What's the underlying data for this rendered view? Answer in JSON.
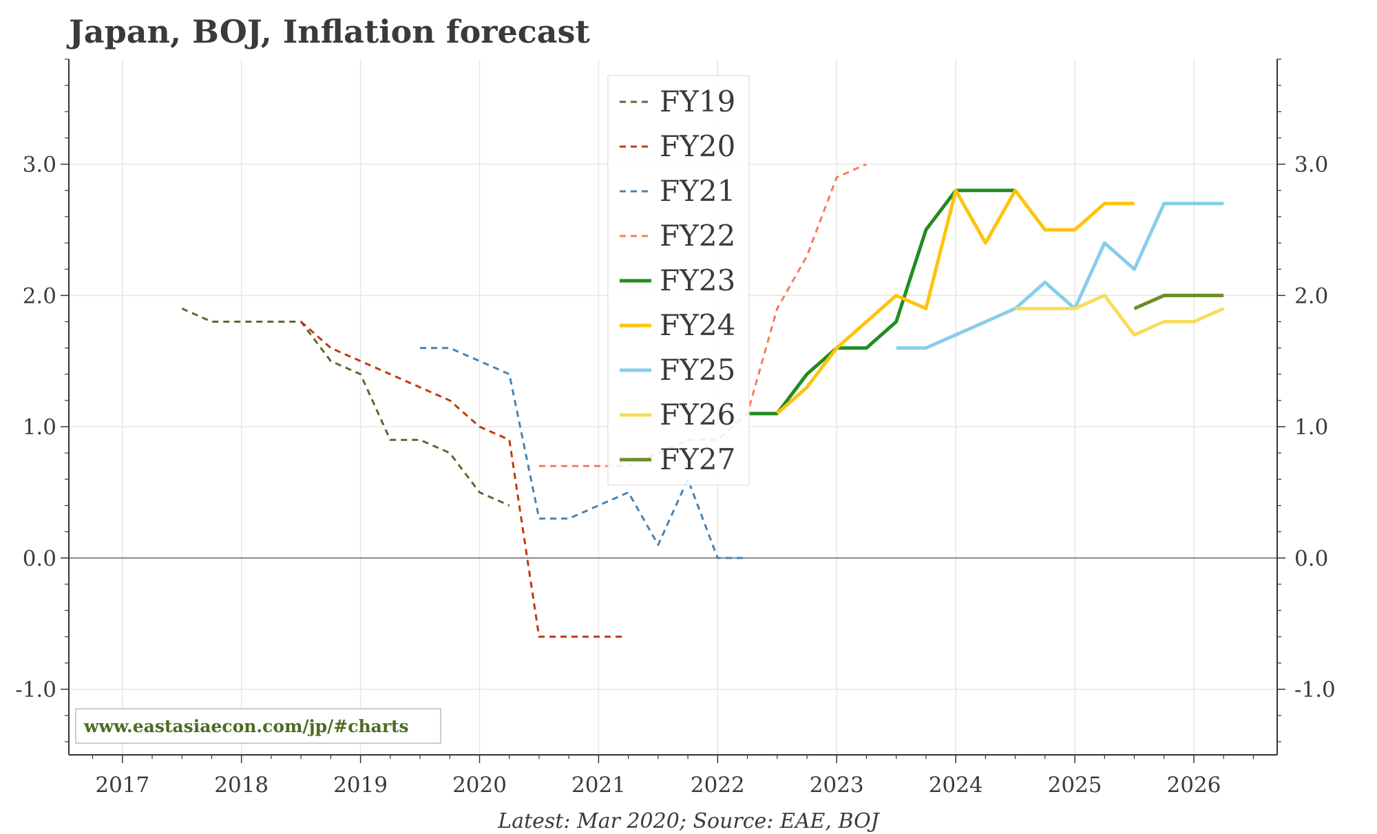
{
  "chart_data": {
    "type": "line",
    "title": "Japan, BOJ, Inflation forecast",
    "source_note": "Latest: Mar 2020; Source: EAE, BOJ",
    "watermark": "www.eastasiaecon.com/jp/#charts",
    "x_tick_labels": [
      "2017",
      "2018",
      "2019",
      "2020",
      "2021",
      "2022",
      "2023",
      "2024",
      "2025",
      "2026"
    ],
    "xlim": [
      2016.55,
      2026.7
    ],
    "ylim": [
      -1.5,
      3.8
    ],
    "y_ticks": [
      -1.0,
      0.0,
      1.0,
      2.0,
      3.0
    ],
    "y_tick_labels": [
      "-1.0",
      "0.0",
      "1.0",
      "2.0",
      "3.0"
    ],
    "zero_line": true,
    "grid": true,
    "legend_position": "top-center",
    "series": [
      {
        "name": "FY19",
        "color": "#556b2f",
        "dashed": true,
        "x": [
          2017.5,
          2017.75,
          2018.0,
          2018.25,
          2018.5,
          2018.75,
          2019.0,
          2019.25,
          2019.5,
          2019.75,
          2020.0,
          2020.25
        ],
        "y": [
          1.9,
          1.8,
          1.8,
          1.8,
          1.8,
          1.5,
          1.4,
          0.9,
          0.9,
          0.8,
          0.5,
          0.4
        ]
      },
      {
        "name": "FY20",
        "color": "#c0390b",
        "dashed": true,
        "x": [
          2018.5,
          2018.75,
          2019.0,
          2019.25,
          2019.5,
          2019.75,
          2020.0,
          2020.25,
          2020.5,
          2020.75,
          2021.0,
          2021.2
        ],
        "y": [
          1.8,
          1.6,
          1.5,
          1.4,
          1.3,
          1.2,
          1.0,
          0.9,
          -0.6,
          -0.6,
          -0.6,
          -0.6
        ]
      },
      {
        "name": "FY21",
        "color": "#4682b4",
        "dashed": true,
        "x": [
          2019.5,
          2019.75,
          2020.0,
          2020.25,
          2020.5,
          2020.75,
          2021.0,
          2021.25,
          2021.5,
          2021.75,
          2022.0,
          2022.25
        ],
        "y": [
          1.6,
          1.6,
          1.5,
          1.4,
          0.3,
          0.3,
          0.4,
          0.5,
          0.1,
          0.6,
          0.0,
          0.0
        ]
      },
      {
        "name": "FY22",
        "color": "#f47c56",
        "dashed": true,
        "x": [
          2020.5,
          2020.75,
          2021.0,
          2021.25,
          2021.5,
          2021.75,
          2022.0,
          2022.25,
          2022.5,
          2022.75,
          2023.0,
          2023.25
        ],
        "y": [
          0.7,
          0.7,
          0.7,
          0.7,
          0.8,
          0.9,
          0.9,
          1.1,
          1.9,
          2.3,
          2.9,
          3.0
        ]
      },
      {
        "name": "FY23",
        "color": "#228b22",
        "dashed": false,
        "x": [
          2022.25,
          2022.5,
          2022.75,
          2023.0,
          2023.25,
          2023.5,
          2023.75,
          2024.0,
          2024.25,
          2024.5
        ],
        "y": [
          1.1,
          1.1,
          1.4,
          1.6,
          1.6,
          1.8,
          2.5,
          2.8,
          2.8,
          2.8
        ]
      },
      {
        "name": "FY24",
        "color": "#ffc20e",
        "dashed": false,
        "x": [
          2022.5,
          2022.75,
          2023.0,
          2023.25,
          2023.5,
          2023.75,
          2024.0,
          2024.25,
          2024.5,
          2024.75,
          2025.0,
          2025.25,
          2025.5
        ],
        "y": [
          1.1,
          1.3,
          1.6,
          1.8,
          2.0,
          1.9,
          2.8,
          2.4,
          2.8,
          2.5,
          2.5,
          2.7,
          2.7
        ]
      },
      {
        "name": "FY25",
        "color": "#87ceeb",
        "dashed": false,
        "x": [
          2023.5,
          2023.75,
          2024.0,
          2024.25,
          2024.5,
          2024.75,
          2025.0,
          2025.25,
          2025.5,
          2025.75,
          2026.0,
          2026.25
        ],
        "y": [
          1.6,
          1.6,
          1.7,
          1.8,
          1.9,
          2.1,
          1.9,
          2.4,
          2.2,
          2.7,
          2.7,
          2.7
        ]
      },
      {
        "name": "FY26",
        "color": "#f9dc5c",
        "dashed": false,
        "x": [
          2024.5,
          2024.75,
          2025.0,
          2025.25,
          2025.5,
          2025.75,
          2026.0,
          2026.25
        ],
        "y": [
          1.9,
          1.9,
          1.9,
          2.0,
          1.7,
          1.8,
          1.8,
          1.9
        ]
      },
      {
        "name": "FY27",
        "color": "#6b8e23",
        "dashed": false,
        "x": [
          2025.5,
          2025.75,
          2026.0,
          2026.25
        ],
        "y": [
          1.9,
          2.0,
          2.0,
          2.0
        ]
      }
    ]
  }
}
